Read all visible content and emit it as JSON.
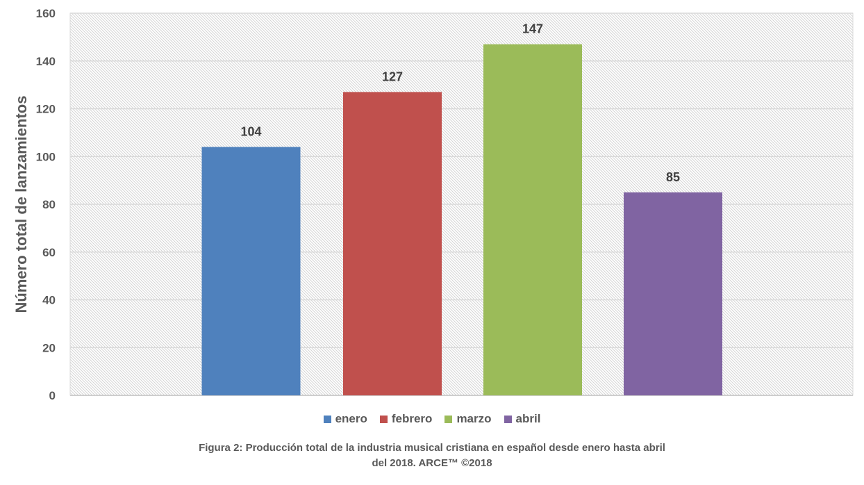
{
  "chart_data": {
    "type": "bar",
    "categories": [
      "enero",
      "febrero",
      "marzo",
      "abril"
    ],
    "values": [
      104,
      127,
      147,
      85
    ],
    "colors": [
      "#4F81BD",
      "#C0504D",
      "#9BBB59",
      "#8064A2"
    ],
    "ylabel": "Número total de lanzamientos",
    "xlabel": "",
    "ylim": [
      0,
      160
    ],
    "yticks": [
      0,
      20,
      40,
      60,
      80,
      100,
      120,
      140,
      160
    ],
    "grid": true,
    "legend_placement": "bottom"
  },
  "caption": {
    "line1": "Figura 2: Producción total de la industria musical cristiana en español desde enero hasta abril",
    "line2": "del 2018. ARCE™ ©2018"
  }
}
